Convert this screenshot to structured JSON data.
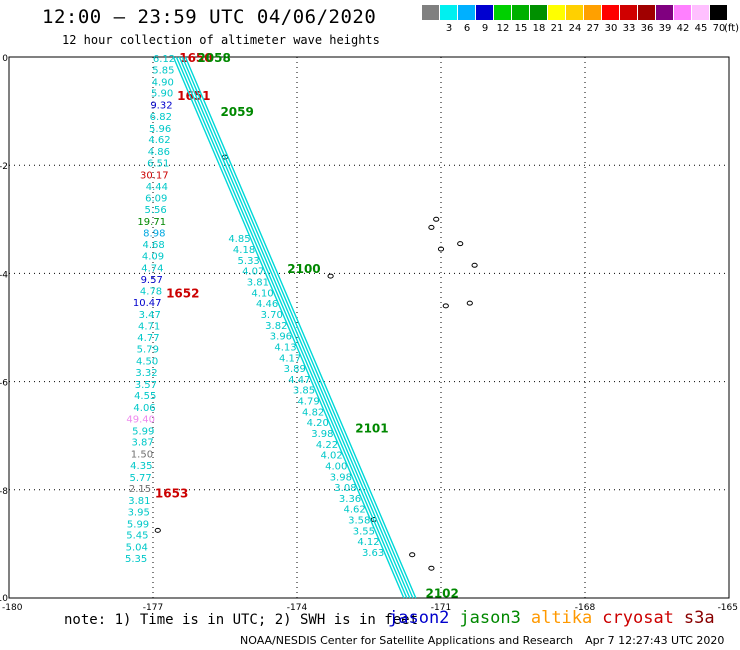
{
  "header": {
    "title": "12:00 – 23:59 UTC 04/06/2020",
    "subtitle": "12 hour collection of altimeter wave heights"
  },
  "color_scale": {
    "colors": [
      "#808080",
      "#00f0f0",
      "#00b0ff",
      "#0000d0",
      "#00d000",
      "#00b000",
      "#009000",
      "#ffff00",
      "#ffd000",
      "#ffa000",
      "#ff0000",
      "#d00000",
      "#a00000",
      "#800080",
      "#ff80ff",
      "#ffc0ff",
      "#000000"
    ],
    "labels": [
      "3",
      "6",
      "9",
      "12",
      "15",
      "18",
      "21",
      "24",
      "27",
      "30",
      "33",
      "36",
      "39",
      "42",
      "45",
      "70"
    ],
    "unit": "(ft)"
  },
  "footer": {
    "note": "note: 1) Time is in UTC; 2) SWH is in feet",
    "legend": [
      {
        "name": "jason2",
        "color": "#0000cc"
      },
      {
        "name": "jason3",
        "color": "#008800"
      },
      {
        "name": "altika",
        "color": "#ff9900"
      },
      {
        "name": "cryosat",
        "color": "#cc0000"
      },
      {
        "name": "s3a",
        "color": "#880000"
      }
    ],
    "credit_left": "NOAA/NESDIS Center for Satellite Applications and Research",
    "credit_right": "Apr  7 12:27:43 UTC 2020"
  },
  "chart_data": {
    "type": "scatter",
    "title": "12:00 – 23:59 UTC 04/06/2020",
    "subtitle": "12 hour collection of altimeter wave heights",
    "xlim": [
      -180,
      -165
    ],
    "ylim": [
      -10,
      0
    ],
    "x_ticks": [
      "-180",
      "-177",
      "-174",
      "-171",
      "-168",
      "-165"
    ],
    "y_ticks": [
      "0",
      "-2",
      "-4",
      "-6",
      "-8",
      "-10"
    ],
    "grid": true,
    "legend_position": "bottom-right",
    "tracks": [
      {
        "satellite": "cryosat",
        "color": "#00d8d8",
        "line_from": [
          -176.62,
          0
        ],
        "line_to": [
          -177.25,
          -10
        ],
        "time_labels": [
          {
            "text": "1650",
            "lat": 0,
            "color": "#cc0000"
          },
          {
            "text": "1651",
            "lat": -0.7,
            "color": "#cc0000"
          },
          {
            "text": "1652",
            "lat": -4.35,
            "color": "#cc0000"
          },
          {
            "text": "1653",
            "lat": -8.05,
            "color": "#cc0000"
          }
        ],
        "points": [
          {
            "lat": -0.02,
            "v": "6.12",
            "c": "#00c8c8"
          },
          {
            "lat": -0.23,
            "v": "5.85",
            "c": "#00c8c8"
          },
          {
            "lat": -0.45,
            "v": "4.90",
            "c": "#00c8c8"
          },
          {
            "lat": -0.66,
            "v": "5.90",
            "c": "#00c8c8"
          },
          {
            "lat": -0.88,
            "v": "9.32",
            "c": "#0000cc"
          },
          {
            "lat": -1.09,
            "v": "6.82",
            "c": "#00c8c8"
          },
          {
            "lat": -1.31,
            "v": "5.96",
            "c": "#00c8c8"
          },
          {
            "lat": -1.52,
            "v": "4.62",
            "c": "#00c8c8"
          },
          {
            "lat": -1.74,
            "v": "4.86",
            "c": "#00c8c8"
          },
          {
            "lat": -1.95,
            "v": "6.51",
            "c": "#00c8c8"
          },
          {
            "lat": -2.17,
            "v": "30.17",
            "c": "#cc0000"
          },
          {
            "lat": -2.38,
            "v": "4.44",
            "c": "#00c8c8"
          },
          {
            "lat": -2.6,
            "v": "6.09",
            "c": "#00c8c8"
          },
          {
            "lat": -2.81,
            "v": "5.56",
            "c": "#00c8c8"
          },
          {
            "lat": -3.03,
            "v": "19.71",
            "c": "#008800"
          },
          {
            "lat": -3.24,
            "v": "8.98",
            "c": "#00a8e0"
          },
          {
            "lat": -3.46,
            "v": "4.68",
            "c": "#00c8c8"
          },
          {
            "lat": -3.67,
            "v": "4.09",
            "c": "#00c8c8"
          },
          {
            "lat": -3.89,
            "v": "4.74",
            "c": "#00c8c8"
          },
          {
            "lat": -4.1,
            "v": "9.57",
            "c": "#0000cc"
          },
          {
            "lat": -4.32,
            "v": "4.78",
            "c": "#00c8c8"
          },
          {
            "lat": -4.53,
            "v": "10.47",
            "c": "#0000cc"
          },
          {
            "lat": -4.75,
            "v": "3.47",
            "c": "#00c8c8"
          },
          {
            "lat": -4.96,
            "v": "4.71",
            "c": "#00c8c8"
          },
          {
            "lat": -5.18,
            "v": "4.77",
            "c": "#00c8c8"
          },
          {
            "lat": -5.39,
            "v": "5.79",
            "c": "#00c8c8"
          },
          {
            "lat": -5.61,
            "v": "4.50",
            "c": "#00c8c8"
          },
          {
            "lat": -5.82,
            "v": "3.32",
            "c": "#00c8c8"
          },
          {
            "lat": -6.04,
            "v": "3.57",
            "c": "#00c8c8"
          },
          {
            "lat": -6.25,
            "v": "4.55",
            "c": "#00c8c8"
          },
          {
            "lat": -6.47,
            "v": "4.06",
            "c": "#00c8c8"
          },
          {
            "lat": -6.68,
            "v": "49.40",
            "c": "#ee88ee"
          },
          {
            "lat": -6.9,
            "v": "5.99",
            "c": "#00c8c8"
          },
          {
            "lat": -7.11,
            "v": "3.87",
            "c": "#00c8c8"
          },
          {
            "lat": -7.33,
            "v": "1.50",
            "c": "#707070"
          },
          {
            "lat": -7.54,
            "v": "4.35",
            "c": "#00c8c8"
          },
          {
            "lat": -7.76,
            "v": "5.77",
            "c": "#00c8c8"
          },
          {
            "lat": -7.97,
            "v": "2.15",
            "c": "#707070"
          },
          {
            "lat": -8.19,
            "v": "3.81",
            "c": "#00c8c8"
          },
          {
            "lat": -8.4,
            "v": "3.95",
            "c": "#00c8c8"
          },
          {
            "lat": -8.62,
            "v": "5.99",
            "c": "#00c8c8"
          },
          {
            "lat": -8.83,
            "v": "5.45",
            "c": "#00c8c8"
          },
          {
            "lat": -9.05,
            "v": "5.04",
            "c": "#00c8c8"
          },
          {
            "lat": -9.26,
            "v": "5.35",
            "c": "#00c8c8"
          }
        ]
      },
      {
        "satellite": "jason3",
        "color": "#00d8d8",
        "line_from": [
          -176.45,
          0
        ],
        "line_to": [
          -171.65,
          -10
        ],
        "time_labels": [
          {
            "text": "2058",
            "lat": 0,
            "color": "#008800"
          },
          {
            "text": "2059",
            "lat": -1.0,
            "color": "#008800"
          },
          {
            "text": "2100",
            "lat": -3.9,
            "color": "#008800"
          },
          {
            "text": "2101",
            "lat": -6.85,
            "color": "#008800"
          },
          {
            "text": "2102",
            "lat": -9.9,
            "color": "#008800"
          }
        ],
        "points": [
          {
            "lat": -3.35,
            "v": "4.85",
            "c": "#00c8c8"
          },
          {
            "lat": -3.55,
            "v": "4.18",
            "c": "#00c8c8"
          },
          {
            "lat": -3.75,
            "v": "5.33",
            "c": "#00c8c8"
          },
          {
            "lat": -3.95,
            "v": "4.07",
            "c": "#00c8c8"
          },
          {
            "lat": -4.15,
            "v": "3.81",
            "c": "#00c8c8"
          },
          {
            "lat": -4.35,
            "v": "4.10",
            "c": "#00c8c8"
          },
          {
            "lat": -4.55,
            "v": "4.46",
            "c": "#00c8c8"
          },
          {
            "lat": -4.75,
            "v": "3.70",
            "c": "#00c8c8"
          },
          {
            "lat": -4.95,
            "v": "3.82",
            "c": "#00c8c8"
          },
          {
            "lat": -5.15,
            "v": "3.96",
            "c": "#00c8c8"
          },
          {
            "lat": -5.35,
            "v": "4.13",
            "c": "#00c8c8"
          },
          {
            "lat": -5.55,
            "v": "4.17",
            "c": "#00c8c8"
          },
          {
            "lat": -5.75,
            "v": "3.89",
            "c": "#00c8c8"
          },
          {
            "lat": -5.95,
            "v": "4.47",
            "c": "#00c8c8"
          },
          {
            "lat": -6.15,
            "v": "3.85",
            "c": "#00c8c8"
          },
          {
            "lat": -6.35,
            "v": "4.79",
            "c": "#00c8c8"
          },
          {
            "lat": -6.55,
            "v": "4.82",
            "c": "#00c8c8"
          },
          {
            "lat": -6.75,
            "v": "4.20",
            "c": "#00c8c8"
          },
          {
            "lat": -6.95,
            "v": "3.98",
            "c": "#00c8c8"
          },
          {
            "lat": -7.15,
            "v": "4.22",
            "c": "#00c8c8"
          },
          {
            "lat": -7.35,
            "v": "4.02",
            "c": "#00c8c8"
          },
          {
            "lat": -7.55,
            "v": "4.00",
            "c": "#00c8c8"
          },
          {
            "lat": -7.75,
            "v": "3.98",
            "c": "#00c8c8"
          },
          {
            "lat": -7.95,
            "v": "3.08",
            "c": "#00c8c8"
          },
          {
            "lat": -8.15,
            "v": "3.36",
            "c": "#00c8c8"
          },
          {
            "lat": -8.35,
            "v": "4.62",
            "c": "#00c8c8"
          },
          {
            "lat": -8.55,
            "v": "3.58",
            "c": "#00c8c8"
          },
          {
            "lat": -8.75,
            "v": "3.55",
            "c": "#00c8c8"
          },
          {
            "lat": -8.95,
            "v": "4.12",
            "c": "#00c8c8"
          },
          {
            "lat": -9.15,
            "v": "3.63",
            "c": "#00c8c8"
          }
        ]
      }
    ],
    "islands": [
      {
        "lon": -175.5,
        "lat": -1.85
      },
      {
        "lon": -173.3,
        "lat": -4.05
      },
      {
        "lon": -170.3,
        "lat": -3.85
      },
      {
        "lon": -170.4,
        "lat": -4.55
      },
      {
        "lon": -170.9,
        "lat": -4.6
      },
      {
        "lon": -171.2,
        "lat": -3.15
      },
      {
        "lon": -171.0,
        "lat": -3.55
      },
      {
        "lon": -170.6,
        "lat": -3.45
      },
      {
        "lon": -171.1,
        "lat": -3.0
      },
      {
        "lon": -172.4,
        "lat": -8.55
      },
      {
        "lon": -171.6,
        "lat": -9.2
      },
      {
        "lon": -171.2,
        "lat": -9.45
      },
      {
        "lon": -176.9,
        "lat": -8.75
      }
    ]
  }
}
